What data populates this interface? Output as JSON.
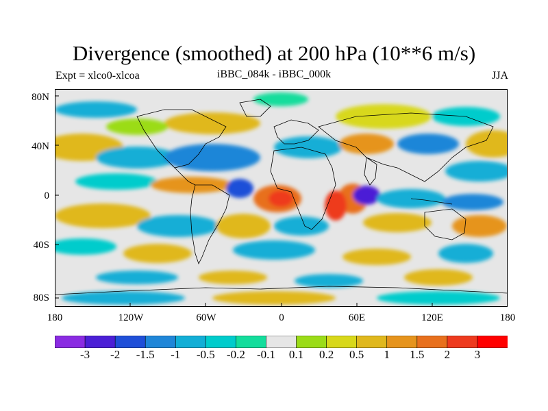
{
  "title": "Divergence (smoothed) at 200 hPa (10**6 m/s)",
  "subtitle_left": "Expt = xlco0-xlcoa",
  "subtitle_center": "iBBC_084k - iBBC_000k",
  "subtitle_right": "JJA",
  "lat_labels": [
    "80N",
    "40N",
    "0",
    "40S",
    "80S"
  ],
  "lon_labels": [
    "180",
    "120W",
    "60W",
    "0",
    "60E",
    "120E",
    "180"
  ],
  "colorbar": {
    "colors": [
      "#8a2be2",
      "#4b1fd6",
      "#1f4fd8",
      "#1f86d8",
      "#12aed6",
      "#00cccc",
      "#13dd9c",
      "#e6e6e6",
      "#9bdc18",
      "#d8d81a",
      "#e0b81d",
      "#e6941d",
      "#e8701d",
      "#ee3a1e",
      "#ff0000"
    ],
    "labels": [
      "-3",
      "-2",
      "-1.5",
      "-1",
      "-0.5",
      "-0.2",
      "-0.1",
      "0.1",
      "0.2",
      "0.5",
      "1",
      "1.5",
      "2",
      "3"
    ]
  },
  "colors": {
    "neutral": "#e6e6e6"
  }
}
